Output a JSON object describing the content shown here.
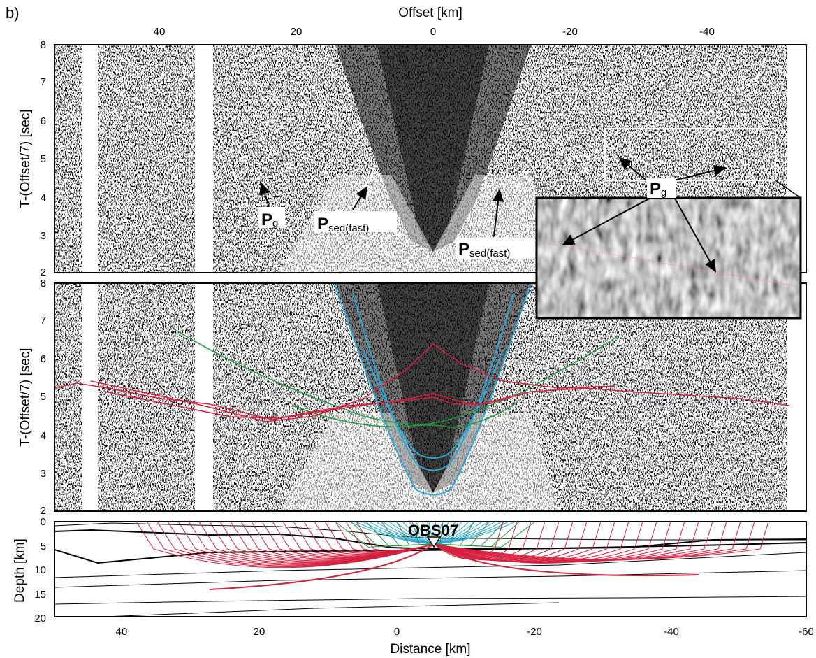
{
  "figure_label": "b)",
  "top_axis": {
    "label": "Offset [km]",
    "ticks": [
      "40",
      "20",
      "0",
      "-20",
      "-40"
    ]
  },
  "panel_a": {
    "ylabel": "T-(Offset/7) [sec]",
    "yticks": [
      "8",
      "7",
      "6",
      "5",
      "4",
      "3",
      "2"
    ],
    "annotations": {
      "pg_left": {
        "main": "P",
        "sub": "g"
      },
      "psed_left": {
        "main": "P",
        "sub": "sed(fast)"
      },
      "psed_right": {
        "main": "P",
        "sub": "sed(fast)"
      },
      "pg_right": {
        "main": "P",
        "sub": "g"
      }
    }
  },
  "panel_b": {
    "ylabel": "T-(Offset/7) [sec]",
    "yticks": [
      "8",
      "7",
      "6",
      "5",
      "4",
      "3",
      "2"
    ]
  },
  "panel_c": {
    "ylabel": "Depth [km]",
    "yticks": [
      "0",
      "5",
      "10",
      "15",
      "20"
    ],
    "station": "OBS07",
    "xlabel": "Distance [km]",
    "xticks": [
      "40",
      "20",
      "0",
      "-20",
      "-40",
      "-60"
    ]
  },
  "colors": {
    "ray_blue": "#2aa7d8",
    "ray_green": "#1a9a3a",
    "ray_red": "#d6203f",
    "axis": "#000000"
  }
}
